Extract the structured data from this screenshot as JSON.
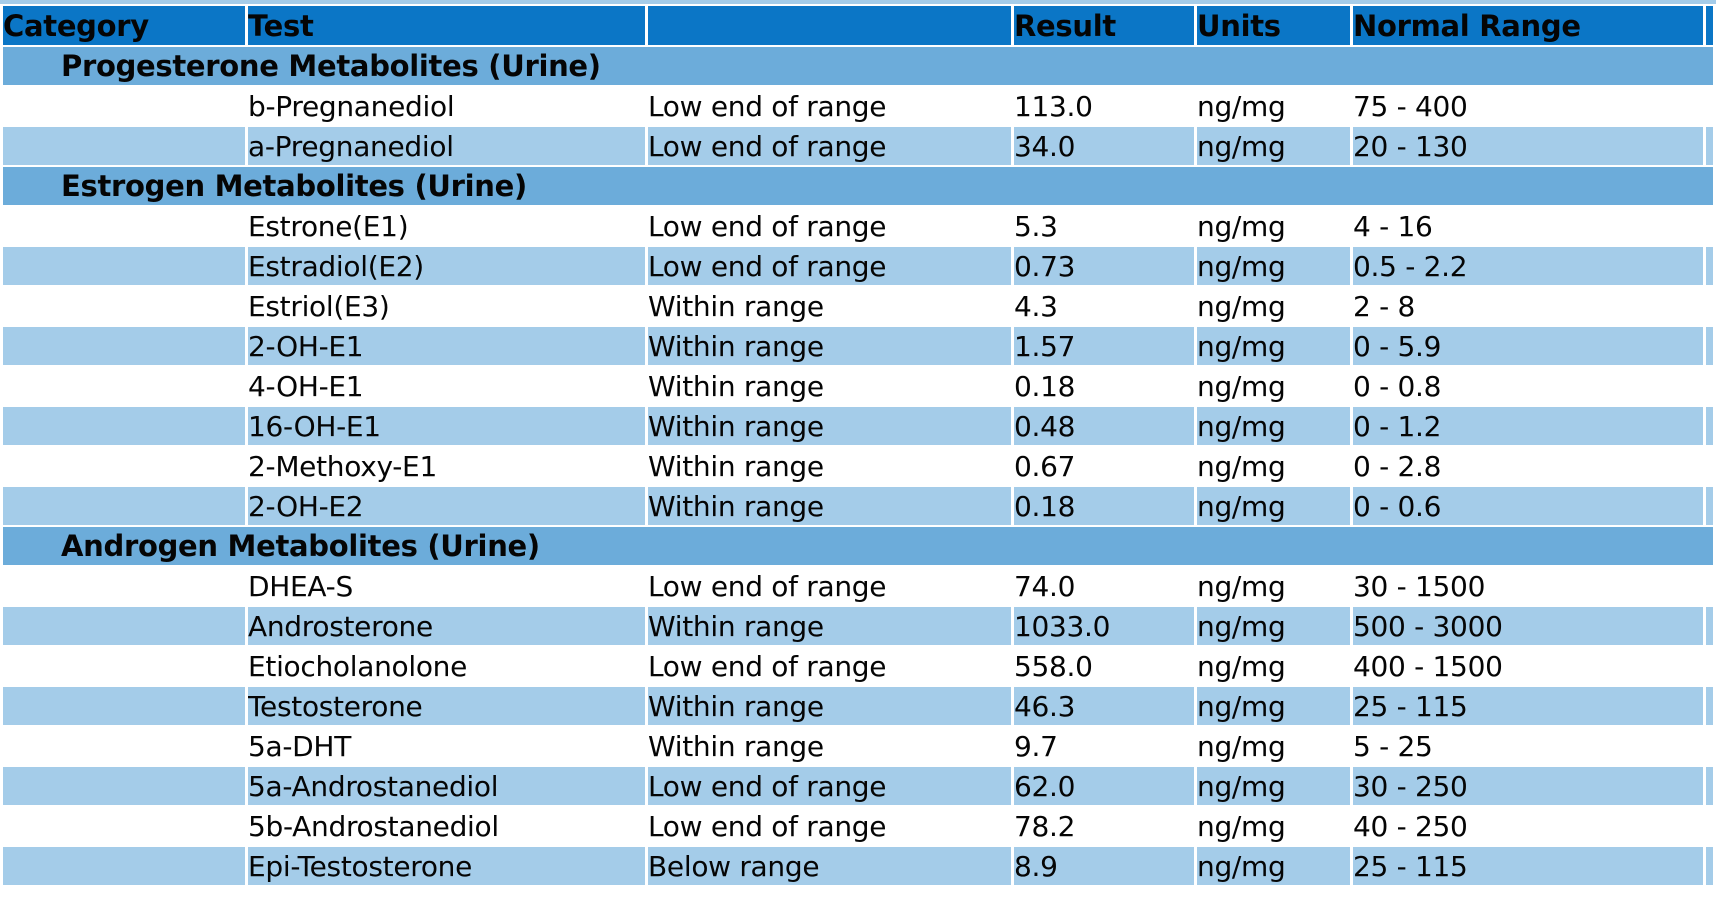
{
  "report_table": {
    "columns": [
      {
        "label": "Category"
      },
      {
        "label": "Test"
      },
      {
        "label": ""
      },
      {
        "label": "Result"
      },
      {
        "label": "Units"
      },
      {
        "label": "Normal Range"
      },
      {
        "label": ""
      }
    ],
    "sections": [
      {
        "title": "Progesterone Metabolites (Urine)",
        "rows": [
          {
            "test": "b-Pregnanediol",
            "status": "Low end of range",
            "result": "113.0",
            "units": "ng/mg",
            "normal_range": "75 - 400"
          },
          {
            "test": "a-Pregnanediol",
            "status": "Low end of range",
            "result": "34.0",
            "units": "ng/mg",
            "normal_range": "20 - 130"
          }
        ]
      },
      {
        "title": "Estrogen Metabolites (Urine)",
        "rows": [
          {
            "test": "Estrone(E1)",
            "status": "Low end of range",
            "result": "5.3",
            "units": "ng/mg",
            "normal_range": "4 - 16"
          },
          {
            "test": "Estradiol(E2)",
            "status": "Low end of range",
            "result": "0.73",
            "units": "ng/mg",
            "normal_range": "0.5 - 2.2"
          },
          {
            "test": "Estriol(E3)",
            "status": "Within range",
            "result": "4.3",
            "units": "ng/mg",
            "normal_range": "2 - 8"
          },
          {
            "test": "2-OH-E1",
            "status": "Within range",
            "result": "1.57",
            "units": "ng/mg",
            "normal_range": "0 - 5.9"
          },
          {
            "test": "4-OH-E1",
            "status": "Within range",
            "result": "0.18",
            "units": "ng/mg",
            "normal_range": "0 - 0.8"
          },
          {
            "test": "16-OH-E1",
            "status": "Within range",
            "result": "0.48",
            "units": "ng/mg",
            "normal_range": "0 - 1.2"
          },
          {
            "test": "2-Methoxy-E1",
            "status": "Within range",
            "result": "0.67",
            "units": "ng/mg",
            "normal_range": "0 - 2.8"
          },
          {
            "test": "2-OH-E2",
            "status": "Within range",
            "result": "0.18",
            "units": "ng/mg",
            "normal_range": "0 - 0.6"
          }
        ]
      },
      {
        "title": "Androgen Metabolites (Urine)",
        "rows": [
          {
            "test": "DHEA-S",
            "status": "Low end of range",
            "result": "74.0",
            "units": "ng/mg",
            "normal_range": "30 - 1500"
          },
          {
            "test": "Androsterone",
            "status": "Within range",
            "result": "1033.0",
            "units": "ng/mg",
            "normal_range": "500 - 3000"
          },
          {
            "test": "Etiocholanolone",
            "status": "Low end of range",
            "result": "558.0",
            "units": "ng/mg",
            "normal_range": "400 - 1500"
          },
          {
            "test": "Testosterone",
            "status": "Within range",
            "result": "46.3",
            "units": "ng/mg",
            "normal_range": "25 - 115"
          },
          {
            "test": "5a-DHT",
            "status": "Within range",
            "result": "9.7",
            "units": "ng/mg",
            "normal_range": "5 - 25"
          },
          {
            "test": "5a-Androstanediol",
            "status": "Low end of range",
            "result": "62.0",
            "units": "ng/mg",
            "normal_range": "30 - 250"
          },
          {
            "test": "5b-Androstanediol",
            "status": "Low end of range",
            "result": "78.2",
            "units": "ng/mg",
            "normal_range": "40 - 250"
          },
          {
            "test": "Epi-Testosterone",
            "status": "Below range",
            "result": "8.9",
            "units": "ng/mg",
            "normal_range": "25 - 115"
          }
        ]
      }
    ],
    "colors": {
      "header_bg": "#0b76c6",
      "section_bg": "#6cacda",
      "row_blue": "#a4cce9",
      "row_white": "#ffffff",
      "separator": "#ffffff",
      "text": "#050505"
    }
  }
}
